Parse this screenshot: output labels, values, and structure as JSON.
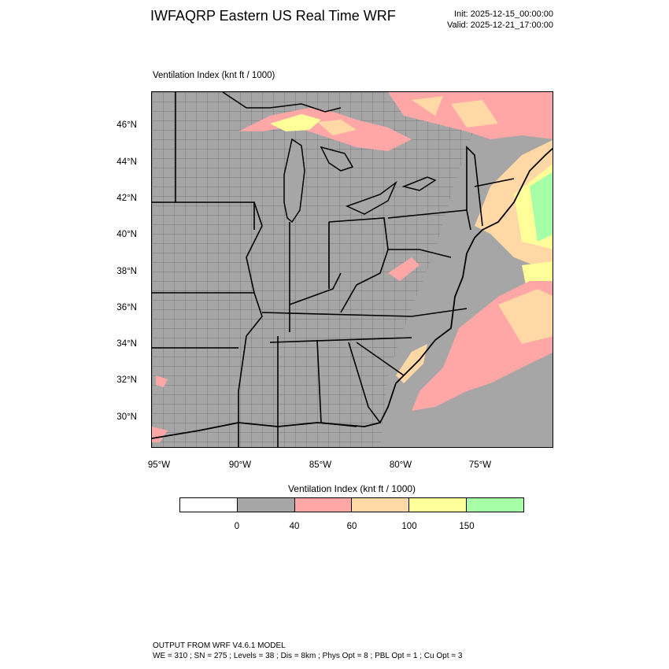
{
  "header": {
    "title": "IWFAQRP Eastern US Real Time WRF",
    "init": "Init: 2025-12-15_00:00:00",
    "valid": "Valid: 2025-12-21_17:00:00"
  },
  "map": {
    "subtitle": "Ventilation Index   (knt ft / 1000)",
    "lat_labels": [
      "46°N",
      "44°N",
      "42°N",
      "40°N",
      "38°N",
      "36°N",
      "34°N",
      "32°N",
      "30°N"
    ],
    "lon_labels": [
      "95°W",
      "90°W",
      "85°W",
      "80°W",
      "75°W"
    ],
    "colors": {
      "land_fill": "#a6a6a6",
      "vi_40_60": "#ffa6a6",
      "vi_60_100": "#ffd8a6",
      "vi_100_150": "#ffff99",
      "vi_150_plus": "#a6ffa6"
    }
  },
  "colorbar": {
    "title": "Ventilation Index  (knt ft / 1000)",
    "colors": [
      "#ffffff",
      "#a6a6a6",
      "#ffa6a6",
      "#ffd8a6",
      "#ffff99",
      "#a6ffa6"
    ],
    "labels": [
      "0",
      "40",
      "60",
      "100",
      "150"
    ]
  },
  "footer": {
    "line1": "OUTPUT FROM WRF V4.6.1 MODEL",
    "line2": "WE = 310 ; SN = 275 ; Levels = 38 ; Dis = 8km ; Phys Opt = 8 ; PBL Opt = 1 ; Cu Opt = 3"
  }
}
